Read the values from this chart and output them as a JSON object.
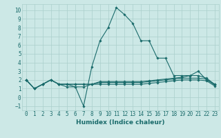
{
  "xlabel": "Humidex (Indice chaleur)",
  "ylabel": "",
  "bg_color": "#cce8e6",
  "grid_color": "#aacfcc",
  "line_color": "#1a6b6b",
  "xlim": [
    -0.5,
    23.5
  ],
  "ylim": [
    -1.5,
    10.7
  ],
  "xticks": [
    0,
    1,
    2,
    3,
    4,
    5,
    6,
    7,
    8,
    9,
    10,
    11,
    12,
    13,
    14,
    15,
    16,
    17,
    18,
    19,
    20,
    21,
    22,
    23
  ],
  "yticks": [
    -1,
    0,
    1,
    2,
    3,
    4,
    5,
    6,
    7,
    8,
    9,
    10
  ],
  "series": [
    {
      "x": [
        0,
        1,
        2,
        3,
        4,
        5,
        6,
        7,
        8,
        9,
        10,
        11,
        12,
        13,
        14,
        15,
        16,
        17,
        18,
        19,
        20,
        21,
        22,
        23
      ],
      "y": [
        2,
        1,
        1.5,
        2,
        1.5,
        1.2,
        1.2,
        -1,
        3.5,
        6.5,
        8,
        10.3,
        9.5,
        8.5,
        6.5,
        6.5,
        4.5,
        4.5,
        2.5,
        2.5,
        2.5,
        3,
        2,
        1.5
      ]
    },
    {
      "x": [
        0,
        1,
        2,
        3,
        4,
        5,
        6,
        7,
        8,
        9,
        10,
        11,
        12,
        13,
        14,
        15,
        16,
        17,
        18,
        19,
        20,
        21,
        22,
        23
      ],
      "y": [
        2,
        1,
        1.5,
        2,
        1.5,
        1.5,
        1.5,
        1.5,
        1.5,
        1.8,
        1.8,
        1.8,
        1.8,
        1.8,
        1.8,
        1.9,
        2.0,
        2.1,
        2.2,
        2.3,
        2.5,
        2.5,
        2.2,
        1.5
      ]
    },
    {
      "x": [
        0,
        1,
        2,
        3,
        4,
        5,
        6,
        7,
        8,
        9,
        10,
        11,
        12,
        13,
        14,
        15,
        16,
        17,
        18,
        19,
        20,
        21,
        22,
        23
      ],
      "y": [
        2,
        1,
        1.5,
        2,
        1.5,
        1.5,
        1.5,
        1.5,
        1.5,
        1.7,
        1.7,
        1.7,
        1.7,
        1.7,
        1.7,
        1.8,
        1.9,
        2.0,
        2.1,
        2.2,
        2.2,
        2.2,
        2.1,
        1.4
      ]
    },
    {
      "x": [
        0,
        1,
        2,
        3,
        4,
        5,
        6,
        7,
        8,
        9,
        10,
        11,
        12,
        13,
        14,
        15,
        16,
        17,
        18,
        19,
        20,
        21,
        22,
        23
      ],
      "y": [
        2,
        1,
        1.5,
        2,
        1.5,
        1.5,
        1.2,
        1.2,
        1.5,
        1.5,
        1.5,
        1.5,
        1.5,
        1.5,
        1.5,
        1.6,
        1.7,
        1.8,
        1.9,
        2.0,
        2.0,
        2.0,
        1.9,
        1.3
      ]
    }
  ]
}
